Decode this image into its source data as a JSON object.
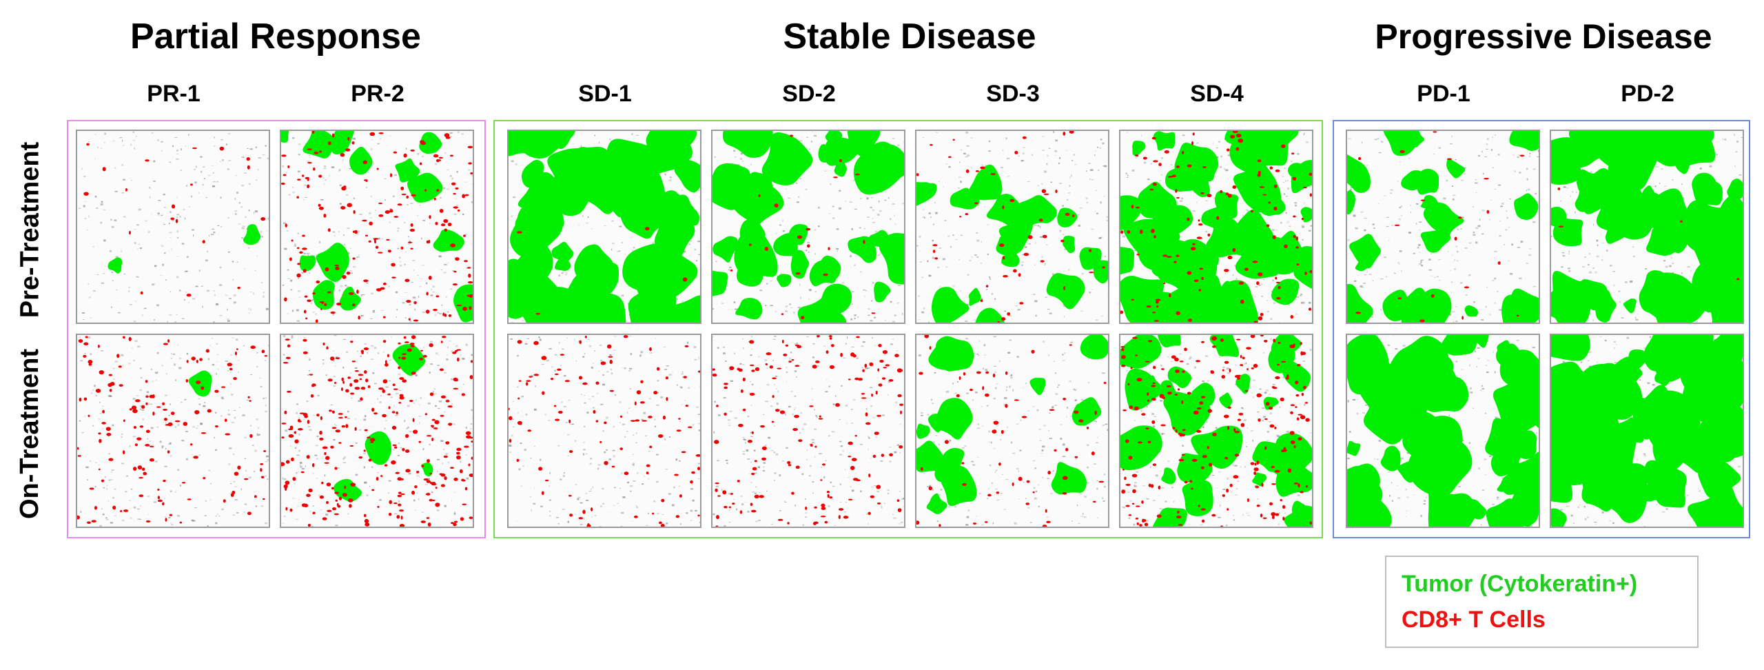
{
  "colors": {
    "tumor": "#00ee00",
    "cd8": "#ee0000",
    "stroma": "#555555",
    "pr_box": "#ee88ee",
    "sd_box": "#77dd55",
    "pd_box": "#6688dd"
  },
  "groups": [
    {
      "title": "Partial Response",
      "columns": [
        "PR-1",
        "PR-2"
      ]
    },
    {
      "title": "Stable Disease",
      "columns": [
        "SD-1",
        "SD-2",
        "SD-3",
        "SD-4"
      ]
    },
    {
      "title": "Progressive Disease",
      "columns": [
        "PD-1",
        "PD-2"
      ]
    }
  ],
  "rows": [
    "Pre-Treatment",
    "On-Treatment"
  ],
  "legend": {
    "tumor_label": "Tumor (Cytokeratin+)",
    "cd8_label": "CD8+ T Cells"
  },
  "panel_density": {
    "PR-1": {
      "pre": {
        "tumor": 0.04,
        "cd8": 0.05
      },
      "on": {
        "tumor": 0.02,
        "cd8": 0.35
      }
    },
    "PR-2": {
      "pre": {
        "tumor": 0.22,
        "cd8": 0.45
      },
      "on": {
        "tumor": 0.06,
        "cd8": 0.7
      }
    },
    "SD-1": {
      "pre": {
        "tumor": 0.85,
        "cd8": 0.01
      },
      "on": {
        "tumor": 0.0,
        "cd8": 0.25
      }
    },
    "SD-2": {
      "pre": {
        "tumor": 0.55,
        "cd8": 0.05
      },
      "on": {
        "tumor": 0.0,
        "cd8": 0.4
      }
    },
    "SD-3": {
      "pre": {
        "tumor": 0.3,
        "cd8": 0.12
      },
      "on": {
        "tumor": 0.25,
        "cd8": 0.15
      }
    },
    "SD-4": {
      "pre": {
        "tumor": 0.7,
        "cd8": 0.3
      },
      "on": {
        "tumor": 0.45,
        "cd8": 0.55
      }
    },
    "PD-1": {
      "pre": {
        "tumor": 0.35,
        "cd8": 0.05
      },
      "on": {
        "tumor": 0.75,
        "cd8": 0.0
      }
    },
    "PD-2": {
      "pre": {
        "tumor": 0.8,
        "cd8": 0.01
      },
      "on": {
        "tumor": 0.9,
        "cd8": 0.0
      }
    }
  }
}
